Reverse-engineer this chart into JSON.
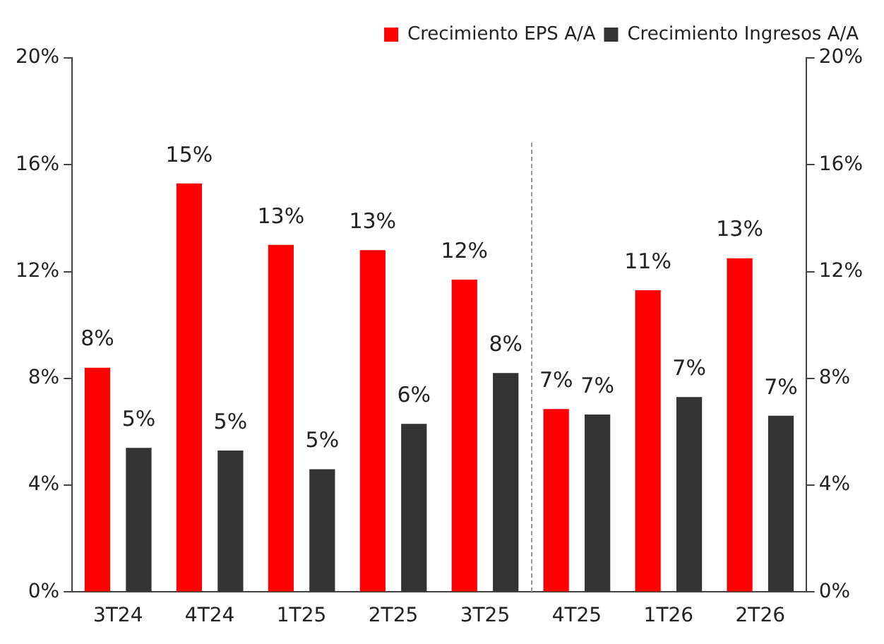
{
  "chart_data": {
    "type": "bar",
    "categories": [
      "3T24",
      "4T24",
      "1T25",
      "2T25",
      "3T25",
      "4T25",
      "1T26",
      "2T26"
    ],
    "series": [
      {
        "name": "Crecimiento EPS A/A",
        "color": "#ff0000",
        "values": [
          8.4,
          15.3,
          13.0,
          12.8,
          11.7,
          6.85,
          11.3,
          12.5
        ],
        "value_labels": [
          "8%",
          "15%",
          "13%",
          "13%",
          "12%",
          "7%",
          "11%",
          "13%"
        ]
      },
      {
        "name": "Crecimiento Ingresos A/A",
        "color": "#333333",
        "values": [
          5.4,
          5.3,
          4.6,
          6.3,
          8.2,
          6.65,
          7.3,
          6.6
        ],
        "value_labels": [
          "5%",
          "5%",
          "5%",
          "6%",
          "8%",
          "7%",
          "7%",
          "7%"
        ]
      }
    ],
    "ylim": [
      0,
      20
    ],
    "yticks": [
      {
        "value": 0,
        "label": "0%"
      },
      {
        "value": 4,
        "label": "4%"
      },
      {
        "value": 8,
        "label": "8%"
      },
      {
        "value": 12,
        "label": "12%"
      },
      {
        "value": 16,
        "label": "16%"
      },
      {
        "value": 20,
        "label": "20%"
      }
    ],
    "y2lim": [
      0,
      20
    ],
    "y2ticks": [
      {
        "value": 0,
        "label": "0%"
      },
      {
        "value": 4,
        "label": "4%"
      },
      {
        "value": 8,
        "label": "8%"
      },
      {
        "value": 12,
        "label": "12%"
      },
      {
        "value": 16,
        "label": "16%"
      },
      {
        "value": 20,
        "label": "20%"
      }
    ],
    "grid": false,
    "legend": "top right"
  }
}
